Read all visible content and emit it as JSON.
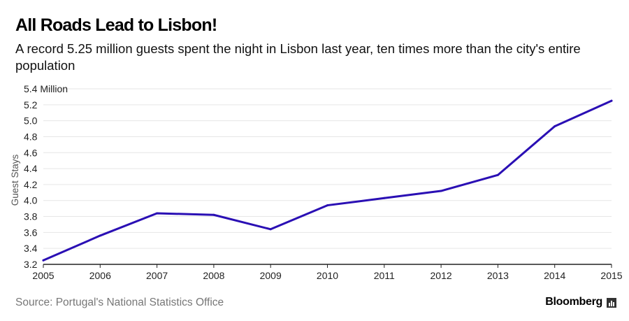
{
  "header": {
    "title": "All Roads Lead to Lisbon!",
    "subtitle": "A record 5.25 million guests spent the night in Lisbon last year, ten times more than the city's entire population"
  },
  "footer": {
    "source": "Source: Portugal's National Statistics Office",
    "brand": "Bloomberg",
    "brand_icon": "bar-chart-icon"
  },
  "colors": {
    "line": "#2a0fb4",
    "grid": "#e6e6e6",
    "baseline": "#222222"
  },
  "chart_data": {
    "type": "line",
    "x": [
      2005,
      2006,
      2007,
      2008,
      2009,
      2010,
      2011,
      2012,
      2013,
      2014,
      2015
    ],
    "series": [
      {
        "values": [
          3.25,
          3.56,
          3.84,
          3.82,
          3.64,
          3.94,
          4.03,
          4.12,
          4.32,
          4.93,
          5.25
        ]
      }
    ],
    "title": "All Roads Lead to Lisbon!",
    "subtitle": "A record 5.25 million guests spent the night in Lisbon last year, ten times more than the city's entire population",
    "xlabel": "",
    "ylabel": "Guest Stays",
    "ylim": [
      3.2,
      5.4
    ],
    "xlim": [
      2005,
      2015
    ],
    "yticks": [
      "3.2",
      "3.4",
      "3.6",
      "3.8",
      "4.0",
      "4.2",
      "4.4",
      "4.6",
      "4.8",
      "5.0",
      "5.2",
      "5.4 Million"
    ],
    "xticks": [
      "2005",
      "2006",
      "2007",
      "2008",
      "2009",
      "2010",
      "2011",
      "2012",
      "2013",
      "2014",
      "2015"
    ],
    "grid": true,
    "legend": "none"
  }
}
